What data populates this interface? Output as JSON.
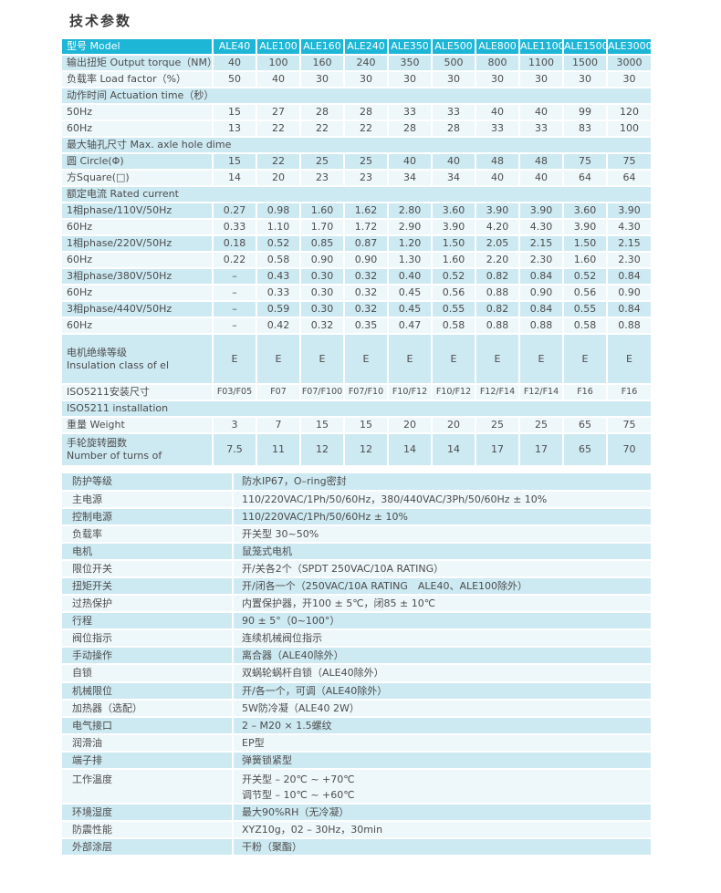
{
  "title": "技术参数",
  "colors": {
    "header_bg": "#1eb6d6",
    "row_blue": "#cde9f2",
    "row_pale": "#eef7fa",
    "text": "#4d4d4d"
  },
  "spec_table": {
    "header": {
      "label": "型号  Model",
      "models": [
        "ALE40",
        "ALE100",
        "ALE160",
        "ALE240",
        "ALE350",
        "ALE500",
        "ALE800",
        "ALE1100",
        "ALE1500",
        "ALE3000"
      ]
    },
    "rows": [
      {
        "kind": "data",
        "bg": "blue",
        "label": "输出扭矩 Output torque（NM）",
        "values": [
          "40",
          "100",
          "160",
          "240",
          "350",
          "500",
          "800",
          "1100",
          "1500",
          "3000"
        ]
      },
      {
        "kind": "data",
        "bg": "pale",
        "label": "负载率 Load factor（%）",
        "values": [
          "50",
          "40",
          "30",
          "30",
          "30",
          "30",
          "30",
          "30",
          "30",
          "30"
        ]
      },
      {
        "kind": "section",
        "bg": "blue",
        "label": "动作时间 Actuation time（秒）"
      },
      {
        "kind": "data",
        "bg": "pale",
        "label": "50Hz",
        "values": [
          "15",
          "27",
          "28",
          "28",
          "33",
          "33",
          "40",
          "40",
          "99",
          "120"
        ]
      },
      {
        "kind": "data",
        "bg": "pale",
        "label": "60Hz",
        "values": [
          "13",
          "22",
          "22",
          "22",
          "28",
          "28",
          "33",
          "33",
          "83",
          "100"
        ]
      },
      {
        "kind": "section",
        "bg": "blue",
        "label": "最大轴孔尺寸 Max. axle hole dime"
      },
      {
        "kind": "data",
        "bg": "blue",
        "label": "圆 Circle(Φ)",
        "values": [
          "15",
          "22",
          "25",
          "25",
          "40",
          "40",
          "48",
          "48",
          "75",
          "75"
        ]
      },
      {
        "kind": "data",
        "bg": "pale",
        "label": "方Square(□)",
        "values": [
          "14",
          "20",
          "23",
          "23",
          "34",
          "34",
          "40",
          "40",
          "64",
          "64"
        ]
      },
      {
        "kind": "section",
        "bg": "blue",
        "label": "额定电流 Rated current"
      },
      {
        "kind": "data",
        "bg": "blue",
        "label": "1相phase/110V/50Hz",
        "values": [
          "0.27",
          "0.98",
          "1.60",
          "1.62",
          "2.80",
          "3.60",
          "3.90",
          "3.90",
          "3.60",
          "3.90"
        ]
      },
      {
        "kind": "data",
        "bg": "pale",
        "label": "60Hz",
        "values": [
          "0.33",
          "1.10",
          "1.70",
          "1.72",
          "2.90",
          "3.90",
          "4.20",
          "4.30",
          "3.90",
          "4.30"
        ]
      },
      {
        "kind": "data",
        "bg": "blue",
        "label": "1相phase/220V/50Hz",
        "values": [
          "0.18",
          "0.52",
          "0.85",
          "0.87",
          "1.20",
          "1.50",
          "2.05",
          "2.15",
          "1.50",
          "2.15"
        ]
      },
      {
        "kind": "data",
        "bg": "pale",
        "label": "60Hz",
        "values": [
          "0.22",
          "0.58",
          "0.90",
          "0.90",
          "1.30",
          "1.60",
          "2.20",
          "2.30",
          "1.60",
          "2.30"
        ]
      },
      {
        "kind": "data",
        "bg": "blue",
        "label": "3相phase/380V/50Hz",
        "values": [
          "–",
          "0.43",
          "0.30",
          "0.32",
          "0.40",
          "0.52",
          "0.82",
          "0.84",
          "0.52",
          "0.84"
        ]
      },
      {
        "kind": "data",
        "bg": "pale",
        "label": "60Hz",
        "values": [
          "–",
          "0.33",
          "0.30",
          "0.32",
          "0.45",
          "0.56",
          "0.88",
          "0.90",
          "0.56",
          "0.90"
        ]
      },
      {
        "kind": "data",
        "bg": "blue",
        "label": "3相phase/440V/50Hz",
        "values": [
          "–",
          "0.59",
          "0.30",
          "0.32",
          "0.45",
          "0.55",
          "0.82",
          "0.84",
          "0.55",
          "0.84"
        ]
      },
      {
        "kind": "data",
        "bg": "pale",
        "label": "60Hz",
        "values": [
          "–",
          "0.42",
          "0.32",
          "0.35",
          "0.47",
          "0.58",
          "0.88",
          "0.88",
          "0.58",
          "0.88"
        ]
      },
      {
        "kind": "tall",
        "h": "a",
        "bg": "blue",
        "label": "电机绝缘等级",
        "label2": "Insulation class of el",
        "values": [
          "E",
          "E",
          "E",
          "E",
          "E",
          "E",
          "E",
          "E",
          "E",
          "E"
        ]
      },
      {
        "kind": "data",
        "bg": "pale",
        "small": true,
        "label": "ISO5211安装尺寸",
        "values": [
          "F03/F05",
          "F07",
          "F07/F100",
          "F07/F10",
          "F10/F12",
          "F10/F12",
          "F12/F14",
          "F12/F14",
          "F16",
          "F16"
        ]
      },
      {
        "kind": "section",
        "bg": "blue",
        "label": "ISO5211 installation"
      },
      {
        "kind": "data",
        "bg": "pale",
        "label": "重量 Weight",
        "values": [
          "3",
          "7",
          "15",
          "15",
          "20",
          "20",
          "25",
          "25",
          "65",
          "75"
        ]
      },
      {
        "kind": "tall",
        "h": "b",
        "bg": "blue",
        "label": "手轮旋转圈数",
        "label2": "Number of turns of",
        "values": [
          "7.5",
          "11",
          "12",
          "12",
          "14",
          "14",
          "17",
          "17",
          "65",
          "70"
        ]
      }
    ]
  },
  "info_table": {
    "rows": [
      {
        "bg": "blue",
        "label": "防护等级",
        "value": "防水IP67，O–ring密封"
      },
      {
        "bg": "pale",
        "label": "主电源",
        "value": "110/220VAC/1Ph/50/60Hz，380/440VAC/3Ph/50/60Hz ± 10%"
      },
      {
        "bg": "blue",
        "label": "控制电源",
        "value": "110/220VAC/1Ph/50/60Hz ± 10%"
      },
      {
        "bg": "pale",
        "label": "负载率",
        "value": "开关型 30~50%"
      },
      {
        "bg": "blue",
        "label": "电机",
        "value": "鼠笼式电机"
      },
      {
        "bg": "pale",
        "label": "限位开关",
        "value": "开/关各2个（SPDT 250VAC/10A RATING）"
      },
      {
        "bg": "blue",
        "label": "扭矩开关",
        "value": "开/闭各一个（250VAC/10A RATING　ALE40、ALE100除外）"
      },
      {
        "bg": "pale",
        "label": "过热保护",
        "value": "内置保护器，开100 ± 5℃，闭85 ± 10℃"
      },
      {
        "bg": "blue",
        "label": "行程",
        "value": "90 ± 5°（0~100°）"
      },
      {
        "bg": "pale",
        "label": "阀位指示",
        "value": "连续机械阀位指示"
      },
      {
        "bg": "blue",
        "label": "手动操作",
        "value": "离合器（ALE40除外）"
      },
      {
        "bg": "pale",
        "label": "自锁",
        "value": "双蜗轮蜗杆自锁（ALE40除外）"
      },
      {
        "bg": "blue",
        "label": "机械限位",
        "value": "开/各一个，可调（ALE40除外）"
      },
      {
        "bg": "pale",
        "label": "加热器（选配）",
        "value": "5W防冷凝（ALE40 2W）"
      },
      {
        "bg": "blue",
        "label": "电气接口",
        "value": "2 – M20 × 1.5螺纹"
      },
      {
        "bg": "pale",
        "label": "润滑油",
        "value": "EP型"
      },
      {
        "bg": "blue",
        "label": "端子排",
        "value": "弹簧锁紧型"
      },
      {
        "bg": "pale",
        "label": "工作温度",
        "lines": [
          "开关型 – 20℃ ~ +70℃",
          "调节型 – 10℃ ~ +60℃"
        ]
      },
      {
        "bg": "blue",
        "label": "环境湿度",
        "value": "最大90%RH（无冷凝）"
      },
      {
        "bg": "pale",
        "label": "防震性能",
        "value": "XYZ10g，02 – 30Hz，30min"
      },
      {
        "bg": "blue",
        "label": "外部涂层",
        "value": "干粉（聚酯）"
      }
    ]
  }
}
